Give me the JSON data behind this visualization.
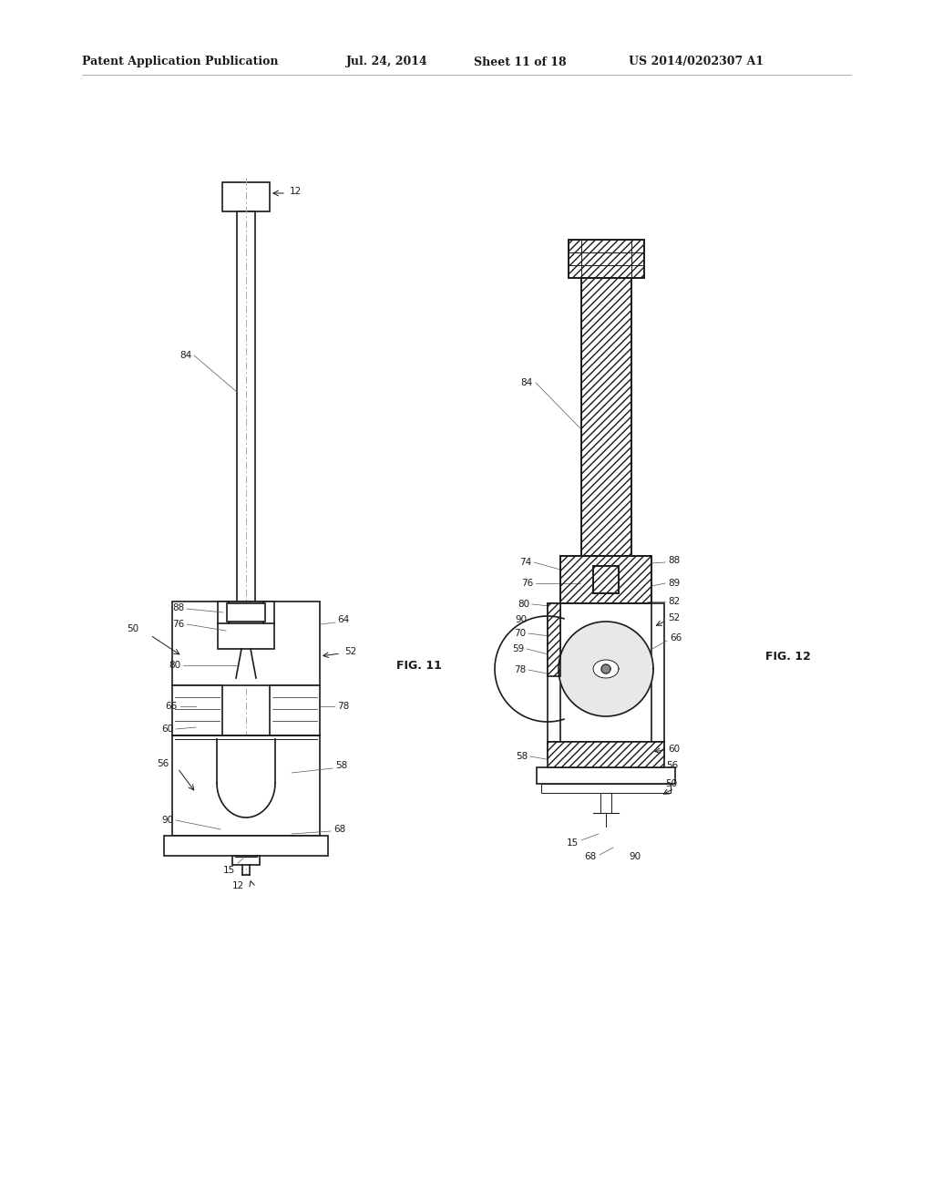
{
  "bg_color": "#ffffff",
  "line_color": "#1a1a1a",
  "header_text": "Patent Application Publication",
  "header_date": "Jul. 24, 2014",
  "header_sheet": "Sheet 11 of 18",
  "header_patent": "US 2014/0202307 A1",
  "fig11_label": "FIG. 11",
  "fig12_label": "FIG. 12"
}
